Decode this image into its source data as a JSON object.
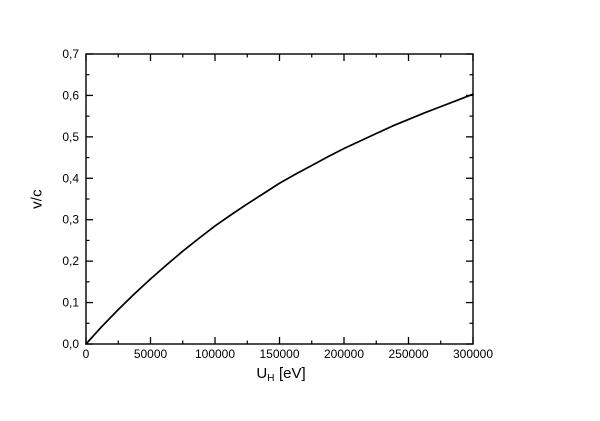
{
  "page": {
    "background": "#ffffff"
  },
  "figure": {
    "frame_color": "#000000",
    "tick_color": "#000000",
    "text_color": "#000000",
    "curve_color": "#000000"
  },
  "chart_data": {
    "type": "line",
    "title": "",
    "ylabel": "v/c",
    "xlabel": {
      "prefix": "U",
      "subscript": "H",
      "unit": "[eV]"
    },
    "xlim": [
      0,
      300000
    ],
    "ylim": [
      0,
      0.7
    ],
    "grid": false,
    "legend": null,
    "decimal_separator": ",",
    "x_major_ticks": [
      0,
      50000,
      100000,
      150000,
      200000,
      250000,
      300000
    ],
    "x_tick_labels": [
      "0",
      "50000",
      "100000",
      "150000",
      "200000",
      "250000",
      "300000"
    ],
    "x_minor_step": 25000,
    "y_major_ticks": [
      0.0,
      0.1,
      0.2,
      0.3,
      0.4,
      0.5,
      0.6,
      0.7
    ],
    "y_tick_labels": [
      "0,0",
      "0,1",
      "0,2",
      "0,3",
      "0,4",
      "0,5",
      "0,6",
      "0,7"
    ],
    "y_minor_step": 0.05,
    "series": [
      {
        "name": "v/c",
        "x": [
          0,
          12500,
          25000,
          37500,
          50000,
          62500,
          75000,
          87500,
          100000,
          112500,
          125000,
          137500,
          150000,
          162500,
          175000,
          187500,
          200000,
          212500,
          225000,
          237500,
          250000,
          262500,
          275000,
          287500,
          300000
        ],
        "y": [
          0,
          0.043,
          0.083,
          0.121,
          0.157,
          0.191,
          0.224,
          0.255,
          0.285,
          0.312,
          0.338,
          0.363,
          0.388,
          0.41,
          0.431,
          0.452,
          0.472,
          0.49,
          0.508,
          0.526,
          0.542,
          0.558,
          0.573,
          0.588,
          0.603
        ]
      }
    ]
  }
}
